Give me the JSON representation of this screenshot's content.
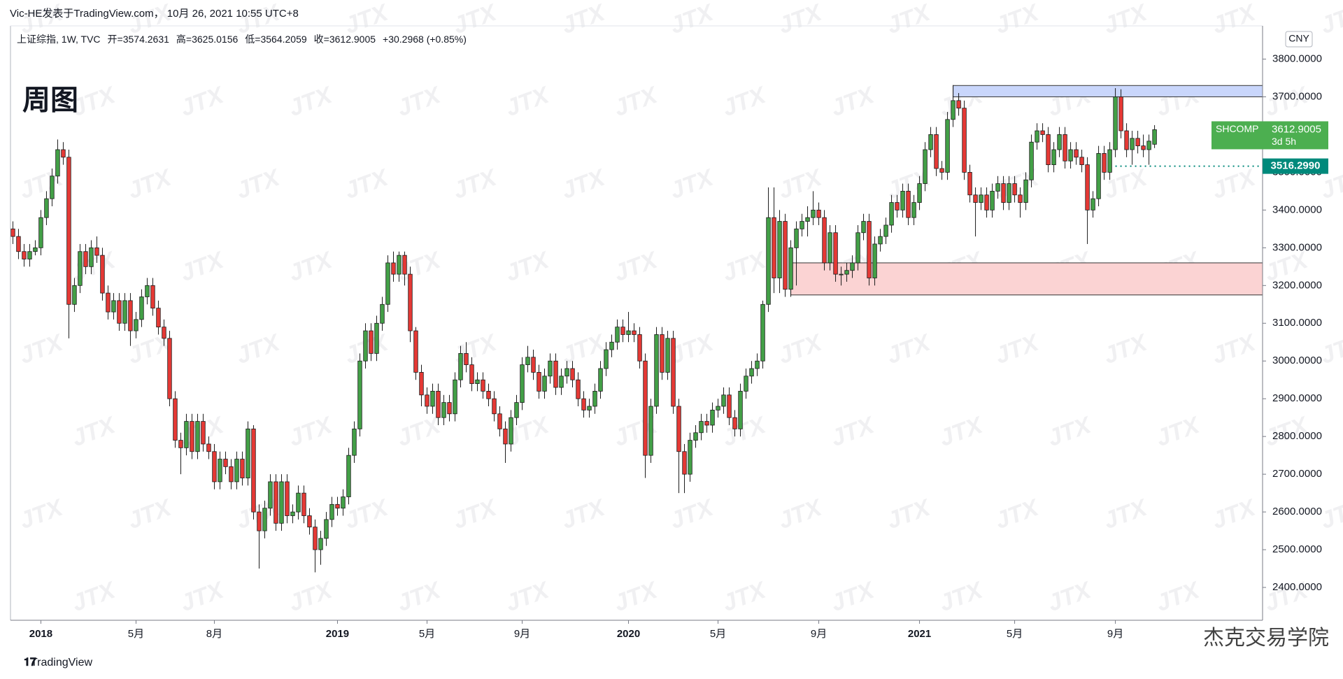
{
  "header": {
    "byline": "Vic-HE发表于TradingView.com， 10月 26, 2021 10:55 UTC+8"
  },
  "chart_data": {
    "type": "candlestick",
    "symbol": "上证综指, 1W, TVC",
    "legend_labels": [
      "开=",
      "高=",
      "低=",
      "收="
    ],
    "change": "+30.2968 (+0.85%)",
    "annotation": "周图",
    "currency": "CNY",
    "up_color": "#43a047",
    "down_color": "#e53935",
    "xlim": [
      -0.43,
      223.3
    ],
    "ylim": [
      2313,
      3888
    ],
    "yticks": [
      {
        "value": 2400,
        "label": "2400.0000"
      },
      {
        "value": 2500,
        "label": "2500.0000"
      },
      {
        "value": 2600,
        "label": "2600.0000"
      },
      {
        "value": 2700,
        "label": "2700.0000"
      },
      {
        "value": 2800,
        "label": "2800.0000"
      },
      {
        "value": 2900,
        "label": "2900.0000"
      },
      {
        "value": 3000,
        "label": "3000.0000"
      },
      {
        "value": 3100,
        "label": "3100.0000"
      },
      {
        "value": 3200,
        "label": "3200.0000"
      },
      {
        "value": 3300,
        "label": "3300.0000"
      },
      {
        "value": 3400,
        "label": "3400.0000"
      },
      {
        "value": 3500,
        "label": "3500.0000"
      },
      {
        "value": 3600,
        "label": "3600.0000"
      },
      {
        "value": 3700,
        "label": "3700.0000"
      },
      {
        "value": 3800,
        "label": "3800.0000"
      }
    ],
    "xticks": [
      {
        "value": 5,
        "label": "2018"
      },
      {
        "value": 22,
        "label": "5月"
      },
      {
        "value": 36,
        "label": "8月"
      },
      {
        "value": 58,
        "label": "2019"
      },
      {
        "value": 74,
        "label": "5月"
      },
      {
        "value": 91,
        "label": "9月"
      },
      {
        "value": 110,
        "label": "2020"
      },
      {
        "value": 126,
        "label": "5月"
      },
      {
        "value": 144,
        "label": "9月"
      },
      {
        "value": 162,
        "label": "2021"
      },
      {
        "value": 179,
        "label": "5月"
      },
      {
        "value": 197,
        "label": "9月"
      }
    ],
    "zones": [
      {
        "from": 3700,
        "to": 3730,
        "start": 168,
        "color": "#c9d6fb"
      },
      {
        "from": 3175,
        "to": 3260,
        "start": 139,
        "color": "#fbd3d3"
      }
    ],
    "level": {
      "value": 3516.299,
      "label": "3516.2990",
      "start": 197,
      "color": "#00897b"
    },
    "last_price": {
      "name": "SHCOMP",
      "countdown": "3d 5h",
      "color": "#4caf50"
    },
    "ohlc": [
      [
        3350,
        3370,
        3310,
        3330
      ],
      [
        3330,
        3350,
        3270,
        3290
      ],
      [
        3290,
        3310,
        3250,
        3270
      ],
      [
        3270,
        3310,
        3250,
        3290
      ],
      [
        3290,
        3320,
        3280,
        3300
      ],
      [
        3300,
        3400,
        3280,
        3380
      ],
      [
        3380,
        3450,
        3360,
        3430
      ],
      [
        3430,
        3510,
        3410,
        3490
      ],
      [
        3490,
        3587,
        3470,
        3560
      ],
      [
        3560,
        3580,
        3520,
        3540
      ],
      [
        3540,
        3560,
        3060,
        3150
      ],
      [
        3150,
        3220,
        3130,
        3200
      ],
      [
        3200,
        3310,
        3180,
        3290
      ],
      [
        3290,
        3310,
        3230,
        3250
      ],
      [
        3250,
        3320,
        3230,
        3300
      ],
      [
        3300,
        3330,
        3260,
        3280
      ],
      [
        3280,
        3300,
        3160,
        3180
      ],
      [
        3180,
        3200,
        3110,
        3130
      ],
      [
        3130,
        3180,
        3110,
        3160
      ],
      [
        3160,
        3180,
        3080,
        3100
      ],
      [
        3100,
        3180,
        3080,
        3160
      ],
      [
        3160,
        3180,
        3040,
        3080
      ],
      [
        3080,
        3130,
        3060,
        3110
      ],
      [
        3110,
        3190,
        3090,
        3170
      ],
      [
        3170,
        3220,
        3150,
        3200
      ],
      [
        3200,
        3220,
        3120,
        3140
      ],
      [
        3140,
        3160,
        3070,
        3090
      ],
      [
        3090,
        3110,
        3040,
        3060
      ],
      [
        3060,
        3080,
        2880,
        2900
      ],
      [
        2900,
        2920,
        2770,
        2790
      ],
      [
        2790,
        2810,
        2700,
        2770
      ],
      [
        2770,
        2860,
        2750,
        2840
      ],
      [
        2840,
        2860,
        2740,
        2760
      ],
      [
        2760,
        2860,
        2740,
        2840
      ],
      [
        2840,
        2860,
        2760,
        2780
      ],
      [
        2780,
        2800,
        2740,
        2760
      ],
      [
        2760,
        2780,
        2660,
        2680
      ],
      [
        2680,
        2760,
        2660,
        2740
      ],
      [
        2740,
        2760,
        2700,
        2720
      ],
      [
        2720,
        2740,
        2660,
        2680
      ],
      [
        2680,
        2760,
        2660,
        2740
      ],
      [
        2740,
        2760,
        2670,
        2690
      ],
      [
        2690,
        2840,
        2670,
        2820
      ],
      [
        2820,
        2830,
        2580,
        2600
      ],
      [
        2600,
        2620,
        2450,
        2550
      ],
      [
        2550,
        2630,
        2530,
        2610
      ],
      [
        2610,
        2700,
        2590,
        2680
      ],
      [
        2680,
        2700,
        2550,
        2570
      ],
      [
        2570,
        2700,
        2550,
        2680
      ],
      [
        2680,
        2700,
        2570,
        2590
      ],
      [
        2590,
        2620,
        2570,
        2600
      ],
      [
        2600,
        2670,
        2580,
        2650
      ],
      [
        2650,
        2670,
        2570,
        2590
      ],
      [
        2590,
        2610,
        2540,
        2560
      ],
      [
        2560,
        2580,
        2440,
        2500
      ],
      [
        2500,
        2550,
        2460,
        2530
      ],
      [
        2530,
        2600,
        2510,
        2580
      ],
      [
        2580,
        2640,
        2560,
        2620
      ],
      [
        2620,
        2640,
        2590,
        2610
      ],
      [
        2610,
        2660,
        2590,
        2640
      ],
      [
        2640,
        2770,
        2620,
        2750
      ],
      [
        2750,
        2840,
        2730,
        2820
      ],
      [
        2820,
        3020,
        2800,
        3000
      ],
      [
        3000,
        3100,
        2980,
        3080
      ],
      [
        3080,
        3100,
        3000,
        3020
      ],
      [
        3020,
        3120,
        3000,
        3100
      ],
      [
        3100,
        3170,
        3080,
        3150
      ],
      [
        3150,
        3280,
        3130,
        3260
      ],
      [
        3260,
        3290,
        3210,
        3230
      ],
      [
        3230,
        3290,
        3210,
        3280
      ],
      [
        3280,
        3290,
        3200,
        3230
      ],
      [
        3230,
        3250,
        3050,
        3080
      ],
      [
        3080,
        3090,
        2950,
        2970
      ],
      [
        2970,
        2990,
        2880,
        2910
      ],
      [
        2910,
        2930,
        2860,
        2880
      ],
      [
        2880,
        2940,
        2860,
        2920
      ],
      [
        2920,
        2940,
        2830,
        2850
      ],
      [
        2850,
        2910,
        2830,
        2890
      ],
      [
        2890,
        2910,
        2840,
        2860
      ],
      [
        2860,
        2970,
        2840,
        2950
      ],
      [
        2950,
        3040,
        2930,
        3020
      ],
      [
        3020,
        3050,
        2970,
        2990
      ],
      [
        2990,
        3010,
        2920,
        2940
      ],
      [
        2940,
        2970,
        2920,
        2950
      ],
      [
        2950,
        2970,
        2900,
        2920
      ],
      [
        2920,
        2940,
        2880,
        2900
      ],
      [
        2900,
        2920,
        2840,
        2860
      ],
      [
        2860,
        2880,
        2800,
        2820
      ],
      [
        2820,
        2840,
        2730,
        2780
      ],
      [
        2780,
        2870,
        2760,
        2850
      ],
      [
        2850,
        2910,
        2830,
        2890
      ],
      [
        2890,
        3010,
        2870,
        2990
      ],
      [
        2990,
        3040,
        2970,
        3010
      ],
      [
        3010,
        3030,
        2950,
        2970
      ],
      [
        2970,
        2990,
        2900,
        2920
      ],
      [
        2920,
        2980,
        2900,
        2960
      ],
      [
        2960,
        3020,
        2940,
        3000
      ],
      [
        3000,
        3020,
        2910,
        2930
      ],
      [
        2930,
        2980,
        2910,
        2960
      ],
      [
        2960,
        3000,
        2940,
        2980
      ],
      [
        2980,
        3000,
        2930,
        2950
      ],
      [
        2950,
        2970,
        2880,
        2900
      ],
      [
        2900,
        2920,
        2850,
        2870
      ],
      [
        2870,
        2900,
        2850,
        2880
      ],
      [
        2880,
        2940,
        2860,
        2920
      ],
      [
        2920,
        3000,
        2900,
        2980
      ],
      [
        2980,
        3050,
        2960,
        3030
      ],
      [
        3030,
        3070,
        3010,
        3050
      ],
      [
        3050,
        3110,
        3030,
        3090
      ],
      [
        3090,
        3110,
        3050,
        3070
      ],
      [
        3070,
        3130,
        3050,
        3080
      ],
      [
        3080,
        3100,
        3050,
        3070
      ],
      [
        3070,
        3090,
        2980,
        3000
      ],
      [
        3000,
        3020,
        2690,
        2750
      ],
      [
        2750,
        2900,
        2730,
        2880
      ],
      [
        2880,
        3090,
        2860,
        3070
      ],
      [
        3070,
        3090,
        2950,
        2970
      ],
      [
        2970,
        3080,
        2950,
        3060
      ],
      [
        3060,
        3080,
        2860,
        2880
      ],
      [
        2880,
        2900,
        2650,
        2760
      ],
      [
        2760,
        2780,
        2650,
        2700
      ],
      [
        2700,
        2810,
        2680,
        2790
      ],
      [
        2790,
        2830,
        2770,
        2810
      ],
      [
        2810,
        2860,
        2790,
        2840
      ],
      [
        2840,
        2860,
        2810,
        2830
      ],
      [
        2830,
        2890,
        2810,
        2870
      ],
      [
        2870,
        2900,
        2850,
        2880
      ],
      [
        2880,
        2930,
        2860,
        2910
      ],
      [
        2910,
        2930,
        2830,
        2850
      ],
      [
        2850,
        2870,
        2800,
        2820
      ],
      [
        2820,
        2940,
        2800,
        2920
      ],
      [
        2920,
        2980,
        2900,
        2960
      ],
      [
        2960,
        3000,
        2940,
        2980
      ],
      [
        2980,
        3020,
        2960,
        3000
      ],
      [
        3000,
        3160,
        2980,
        3150
      ],
      [
        3150,
        3460,
        3130,
        3380
      ],
      [
        3380,
        3460,
        3180,
        3220
      ],
      [
        3220,
        3400,
        3180,
        3370
      ],
      [
        3370,
        3390,
        3170,
        3190
      ],
      [
        3190,
        3320,
        3170,
        3300
      ],
      [
        3300,
        3370,
        3200,
        3350
      ],
      [
        3350,
        3390,
        3330,
        3370
      ],
      [
        3370,
        3410,
        3330,
        3380
      ],
      [
        3380,
        3450,
        3360,
        3400
      ],
      [
        3400,
        3420,
        3360,
        3380
      ],
      [
        3380,
        3400,
        3240,
        3260
      ],
      [
        3260,
        3360,
        3240,
        3340
      ],
      [
        3340,
        3360,
        3210,
        3230
      ],
      [
        3230,
        3250,
        3200,
        3230
      ],
      [
        3230,
        3260,
        3210,
        3240
      ],
      [
        3240,
        3280,
        3220,
        3260
      ],
      [
        3260,
        3360,
        3240,
        3340
      ],
      [
        3340,
        3390,
        3320,
        3370
      ],
      [
        3370,
        3390,
        3200,
        3220
      ],
      [
        3220,
        3330,
        3200,
        3310
      ],
      [
        3310,
        3350,
        3290,
        3330
      ],
      [
        3330,
        3380,
        3310,
        3360
      ],
      [
        3360,
        3440,
        3340,
        3420
      ],
      [
        3420,
        3440,
        3380,
        3400
      ],
      [
        3400,
        3470,
        3380,
        3450
      ],
      [
        3450,
        3470,
        3360,
        3380
      ],
      [
        3380,
        3440,
        3360,
        3420
      ],
      [
        3420,
        3490,
        3400,
        3470
      ],
      [
        3470,
        3580,
        3450,
        3560
      ],
      [
        3560,
        3620,
        3540,
        3600
      ],
      [
        3600,
        3620,
        3490,
        3510
      ],
      [
        3510,
        3530,
        3480,
        3500
      ],
      [
        3500,
        3660,
        3480,
        3640
      ],
      [
        3640,
        3731,
        3620,
        3690
      ],
      [
        3690,
        3710,
        3650,
        3670
      ],
      [
        3670,
        3690,
        3480,
        3500
      ],
      [
        3500,
        3520,
        3420,
        3440
      ],
      [
        3440,
        3460,
        3330,
        3420
      ],
      [
        3420,
        3460,
        3400,
        3440
      ],
      [
        3440,
        3460,
        3380,
        3400
      ],
      [
        3400,
        3470,
        3380,
        3450
      ],
      [
        3450,
        3490,
        3430,
        3470
      ],
      [
        3470,
        3490,
        3400,
        3420
      ],
      [
        3420,
        3490,
        3400,
        3470
      ],
      [
        3470,
        3490,
        3420,
        3440
      ],
      [
        3440,
        3460,
        3380,
        3420
      ],
      [
        3420,
        3500,
        3400,
        3480
      ],
      [
        3480,
        3600,
        3460,
        3580
      ],
      [
        3580,
        3630,
        3560,
        3610
      ],
      [
        3610,
        3630,
        3580,
        3600
      ],
      [
        3600,
        3620,
        3500,
        3520
      ],
      [
        3520,
        3580,
        3500,
        3560
      ],
      [
        3560,
        3620,
        3540,
        3600
      ],
      [
        3600,
        3620,
        3510,
        3530
      ],
      [
        3530,
        3580,
        3510,
        3560
      ],
      [
        3560,
        3580,
        3520,
        3540
      ],
      [
        3540,
        3560,
        3500,
        3520
      ],
      [
        3520,
        3540,
        3310,
        3400
      ],
      [
        3400,
        3450,
        3380,
        3430
      ],
      [
        3430,
        3570,
        3410,
        3550
      ],
      [
        3550,
        3570,
        3480,
        3500
      ],
      [
        3500,
        3580,
        3480,
        3560
      ],
      [
        3560,
        3723,
        3540,
        3700
      ],
      [
        3700,
        3720,
        3590,
        3610
      ],
      [
        3610,
        3630,
        3540,
        3560
      ],
      [
        3560,
        3610,
        3520,
        3590
      ],
      [
        3590,
        3610,
        3550,
        3570
      ],
      [
        3570,
        3600,
        3540,
        3560
      ],
      [
        3560,
        3600,
        3520,
        3582.6
      ],
      [
        3574.2631,
        3625.0156,
        3564.2059,
        3612.9005
      ]
    ]
  },
  "watermark": "JTX",
  "footer": {
    "brand": "TradingView",
    "credit": "杰克交易学院"
  }
}
